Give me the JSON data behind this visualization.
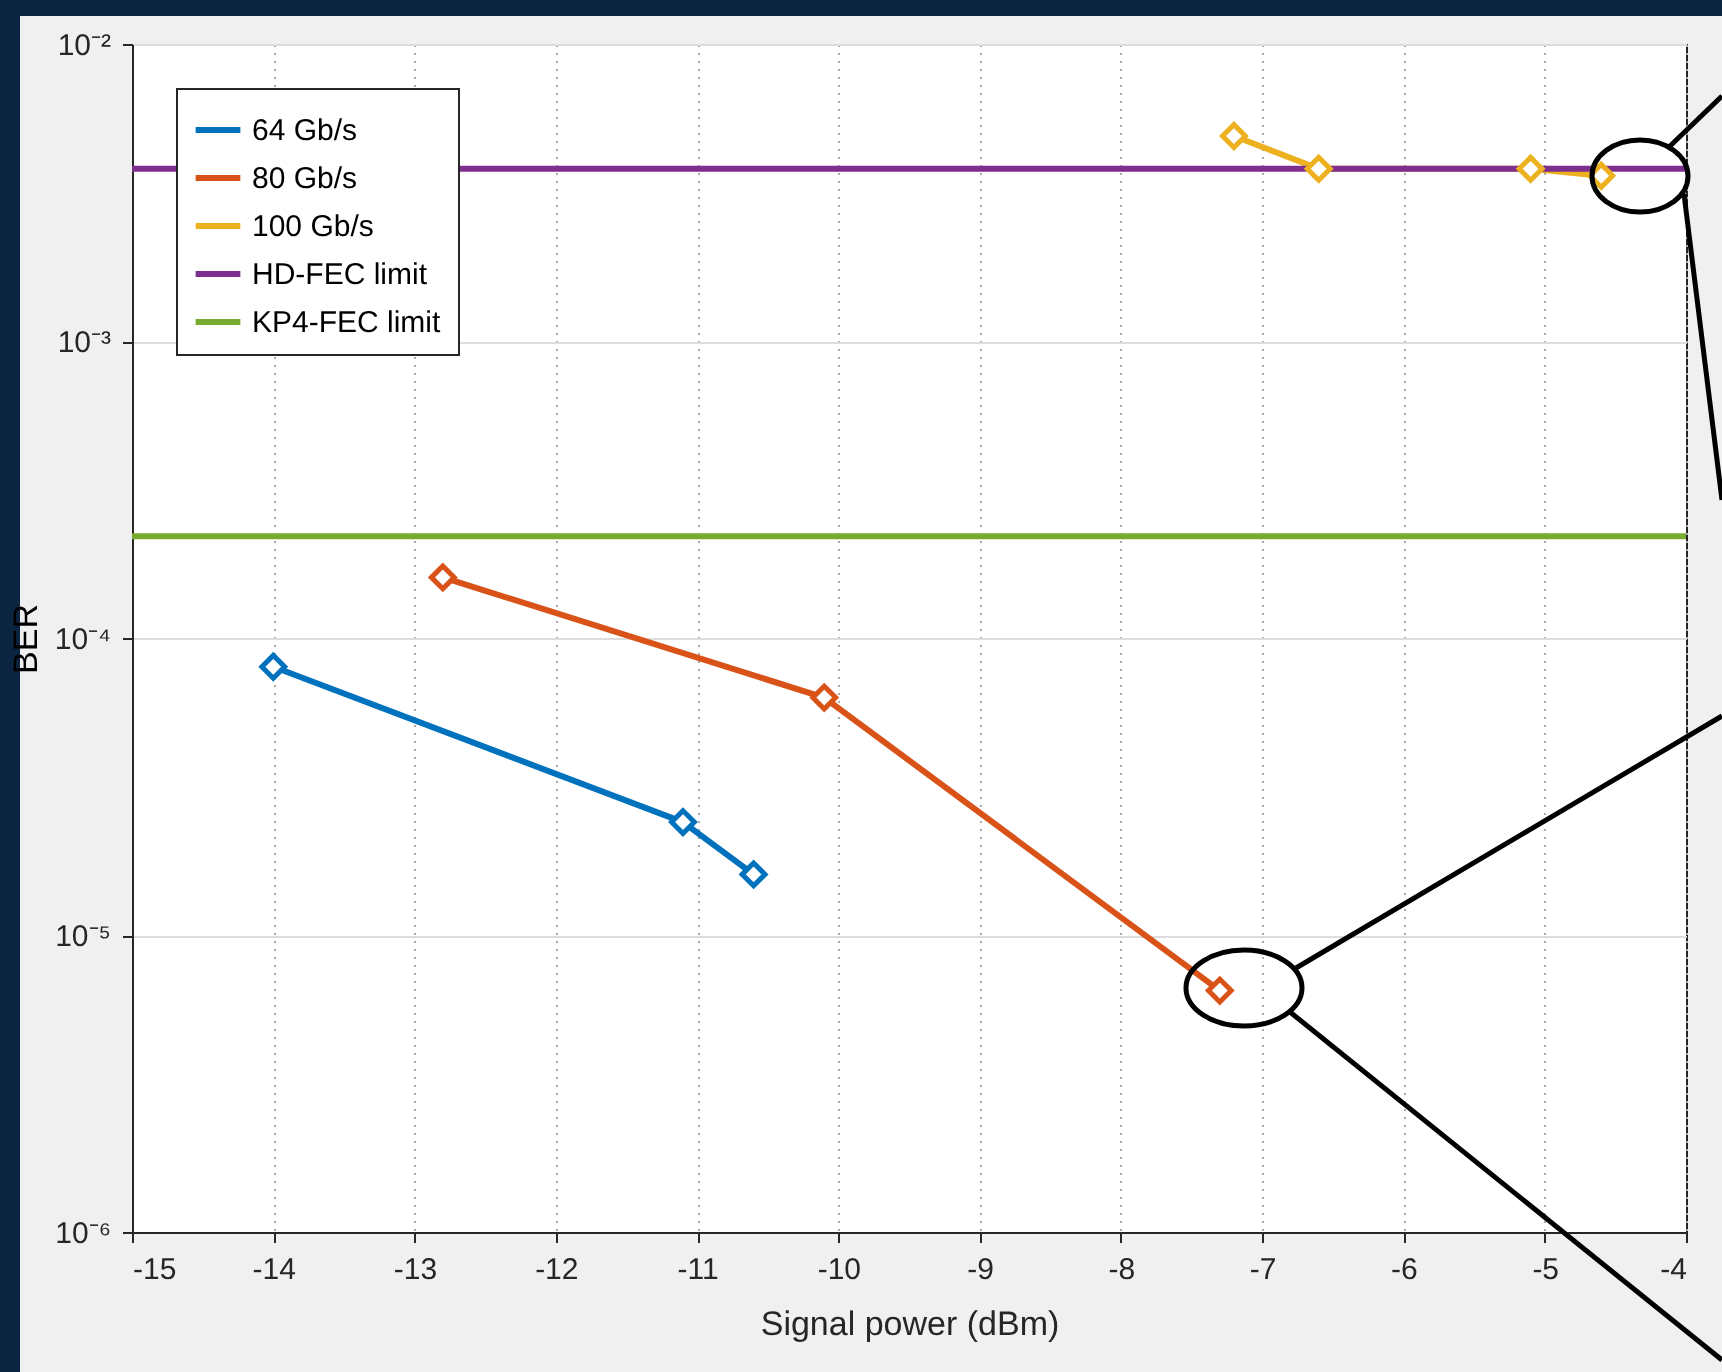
{
  "chart_data": {
    "type": "line",
    "xlabel": "Signal power (dBm)",
    "ylabel": "BER",
    "xlim": [
      -15,
      -4
    ],
    "xticks": [
      -15,
      -14,
      -13,
      -12,
      -11,
      -10,
      -9,
      -8,
      -7,
      -6,
      -5,
      -4
    ],
    "ylim": [
      1e-06,
      0.01
    ],
    "yticks": [
      {
        "value": 1e-06,
        "label": "10⁻⁶"
      },
      {
        "value": 1e-05,
        "label": "10⁻⁵"
      },
      {
        "value": 0.0001,
        "label": "10⁻⁴"
      },
      {
        "value": 0.001,
        "label": "10⁻³"
      },
      {
        "value": 0.01,
        "label": "10⁻²"
      }
    ],
    "log": "y",
    "grid": true,
    "legend": "top left",
    "marker": "diamond",
    "line_style": "solid",
    "series": [
      {
        "name": "64 Gb/s",
        "color": "#0072bd",
        "x": [
          -14,
          -11.1,
          -10.6
        ],
        "values": [
          8e-05,
          2.4e-05,
          1.6e-05
        ]
      },
      {
        "name": "80 Gb/s",
        "color": "#d95319",
        "x": [
          -12.8,
          -10.1,
          -7.3
        ],
        "values": [
          0.00016,
          6.3e-05,
          6.5e-06
        ]
      },
      {
        "name": "100 Gb/s",
        "color": "#edb120",
        "x": [
          -7.2,
          -6.6,
          -5.1,
          -4.6
        ],
        "values": [
          0.0049,
          0.0038,
          0.0038,
          0.0036
        ]
      }
    ],
    "ref_lines": [
      {
        "axis": "y",
        "value": 0.0038,
        "label": "HD-FEC limit",
        "color": "#7e2f8e"
      },
      {
        "axis": "y",
        "value": 0.00022,
        "label": "KP4-FEC limit",
        "color": "#77ac30"
      }
    ]
  }
}
